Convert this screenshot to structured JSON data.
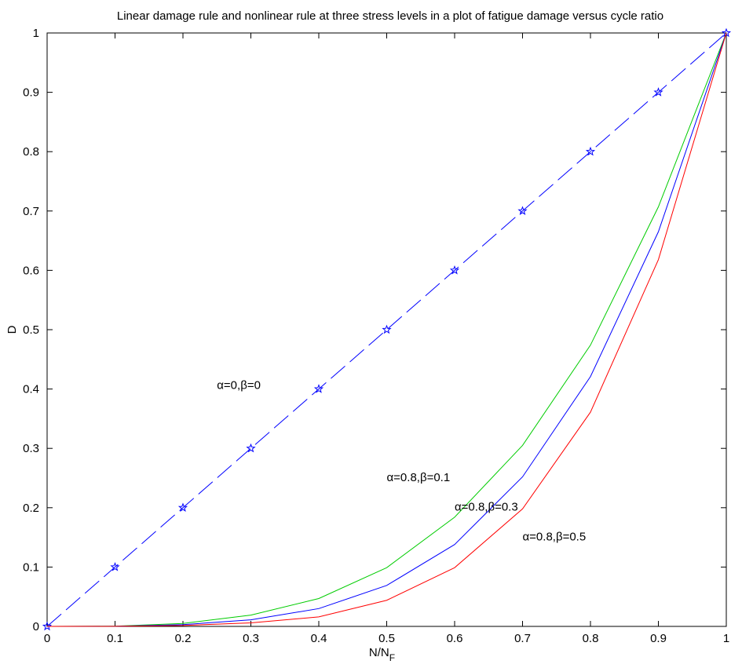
{
  "chart_data": {
    "type": "line",
    "title": "Linear damage rule and nonlinear rule at three stress levels in a plot of fatigue damage versus cycle ratio",
    "xlabel": "N/N",
    "xlabel_sub": "F",
    "ylabel": "D",
    "xlim": [
      0,
      1
    ],
    "ylim": [
      0,
      1
    ],
    "xticks": [
      "0",
      "0.1",
      "0.2",
      "0.3",
      "0.4",
      "0.5",
      "0.6",
      "0.7",
      "0.8",
      "0.9",
      "1"
    ],
    "yticks": [
      "0",
      "0.1",
      "0.2",
      "0.3",
      "0.4",
      "0.5",
      "0.6",
      "0.7",
      "0.8",
      "0.9",
      "1"
    ],
    "x": [
      0,
      0.1,
      0.2,
      0.3,
      0.4,
      0.5,
      0.6,
      0.7,
      0.8,
      0.9,
      1.0
    ],
    "series": [
      {
        "name": "α=0,β=0",
        "color": "#0000ff",
        "style": "dashed",
        "marker": "star",
        "values": [
          0,
          0.1,
          0.2,
          0.3,
          0.4,
          0.5,
          0.6,
          0.7,
          0.8,
          0.9,
          1.0
        ]
      },
      {
        "name": "α=0.8,β=0.1",
        "color": "#00cc00",
        "style": "solid",
        "values": [
          0,
          0.0004,
          0.005,
          0.019,
          0.047,
          0.099,
          0.184,
          0.305,
          0.474,
          0.707,
          1.0
        ]
      },
      {
        "name": "α=0.8,β=0.3",
        "color": "#0000ff",
        "style": "solid",
        "values": [
          0,
          0.0002,
          0.003,
          0.011,
          0.03,
          0.069,
          0.138,
          0.252,
          0.421,
          0.665,
          1.0
        ]
      },
      {
        "name": "α=0.8,β=0.5",
        "color": "#ff0000",
        "style": "solid",
        "values": [
          0,
          0.0001,
          0.0015,
          0.006,
          0.016,
          0.044,
          0.099,
          0.198,
          0.361,
          0.618,
          1.0
        ]
      }
    ],
    "annotations": [
      {
        "text": "α=0,β=0",
        "x": 0.25,
        "y": 0.4
      },
      {
        "text": "α=0.8,β=0.1",
        "x": 0.5,
        "y": 0.245
      },
      {
        "text": "α=0.8,β=0.3",
        "x": 0.6,
        "y": 0.195
      },
      {
        "text": "α=0.8,β=0.5",
        "x": 0.7,
        "y": 0.145
      }
    ],
    "grid": false,
    "legend": "none"
  }
}
